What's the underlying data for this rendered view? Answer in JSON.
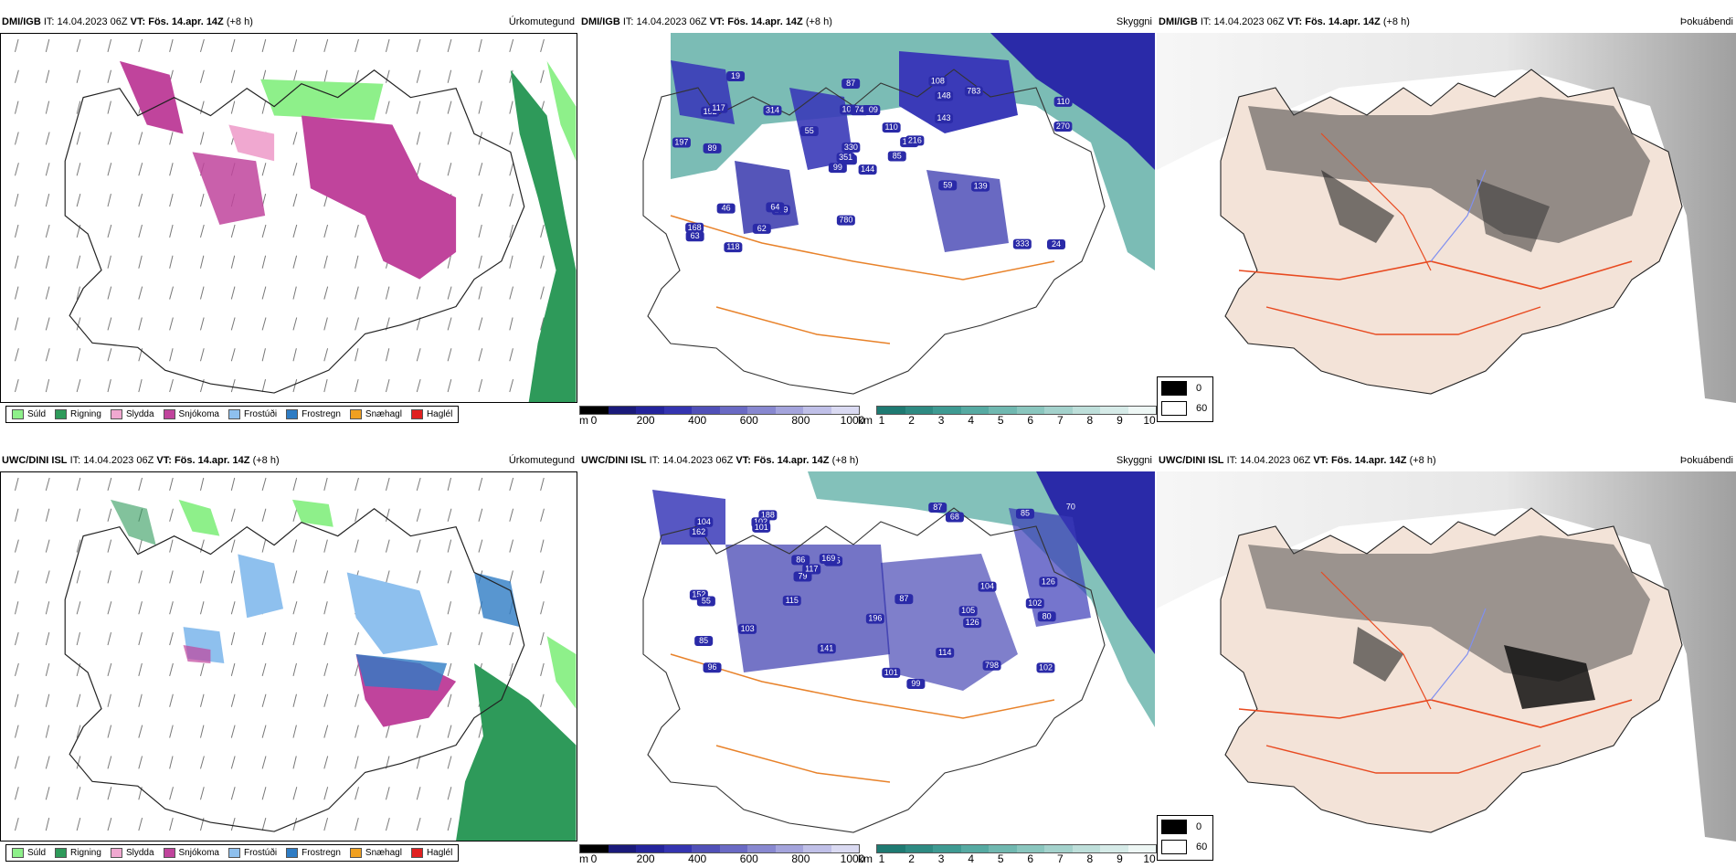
{
  "rows": [
    {
      "model": "DMI/IGB",
      "it_label": "IT:",
      "it_value": "14.04.2023 06Z",
      "vt_label": "VT:",
      "vt_value": "Fös. 14.apr. 14Z",
      "lead": "(+8 h)",
      "ceiling_bubbles": [
        "144",
        "152",
        "105",
        "168",
        "129",
        "179",
        "108",
        "109",
        "148",
        "85",
        "19",
        "24",
        "89",
        "110",
        "99",
        "143",
        "118",
        "104",
        "110",
        "46",
        "55",
        "63",
        "62",
        "74",
        "216",
        "139",
        "117",
        "87",
        "197",
        "59",
        "270",
        "351",
        "780",
        "330",
        "314",
        "783",
        "64",
        "333"
      ]
    },
    {
      "model": "UWC/DINI ISL",
      "it_label": "IT:",
      "it_value": "14.04.2023 06Z",
      "vt_label": "VT:",
      "vt_value": "Fös. 14.apr. 14Z",
      "lead": "(+8 h)",
      "ceiling_bubbles": [
        "105",
        "102",
        "96",
        "188",
        "145",
        "798",
        "85",
        "68",
        "86",
        "99",
        "162",
        "152",
        "104",
        "102",
        "141",
        "126",
        "196",
        "87",
        "169",
        "103",
        "70",
        "85",
        "79",
        "80",
        "87",
        "102",
        "126",
        "55",
        "101",
        "104",
        "101",
        "114",
        "117",
        "115"
      ]
    }
  ],
  "panel_titles": {
    "precip": "Úrkomutegund",
    "ceiling": "Skyggni",
    "fog": "Þokuábendi"
  },
  "precip_legend": [
    {
      "label": "Súld",
      "color": "#8ef08a"
    },
    {
      "label": "Rigning",
      "color": "#2e9a5a"
    },
    {
      "label": "Slydda",
      "color": "#f0a8d0"
    },
    {
      "label": "Snjókoma",
      "color": "#c0449c"
    },
    {
      "label": "Frostúði",
      "color": "#8ec0ee"
    },
    {
      "label": "Frostregn",
      "color": "#2e7cc4"
    },
    {
      "label": "Snæhagl",
      "color": "#f0a020"
    },
    {
      "label": "Haglél",
      "color": "#e02020"
    }
  ],
  "ceiling_scale": {
    "unit": "m",
    "ticks": [
      "0",
      "200",
      "400",
      "600",
      "800",
      "1000"
    ],
    "colors": [
      "#000000",
      "#1a1a7a",
      "#24249c",
      "#3434b0",
      "#5050b8",
      "#6a6ac4",
      "#8888d0",
      "#a4a4dc",
      "#c0c0e8",
      "#dadaf2"
    ]
  },
  "visibility_scale": {
    "unit": "km",
    "ticks": [
      "1",
      "2",
      "3",
      "4",
      "5",
      "6",
      "7",
      "8",
      "9",
      "10"
    ],
    "colors": [
      "#1e7a72",
      "#2e8a82",
      "#3e9a92",
      "#56aaa2",
      "#70b8b0",
      "#8ac6be",
      "#a4d2cc",
      "#bedfda",
      "#d6ebe8",
      "#eef7f5"
    ]
  },
  "fog_legend": [
    {
      "label": "0",
      "color": "#000000"
    },
    {
      "label": "60",
      "color": "#ffffff"
    }
  ],
  "colors": {
    "iceland_land_fog": "#f3e3d8",
    "roads": "#e85a20",
    "rivers": "#7f8ff0",
    "vis_teal": "#4fa69c",
    "ceiling_blue": "#2a2aa8"
  }
}
